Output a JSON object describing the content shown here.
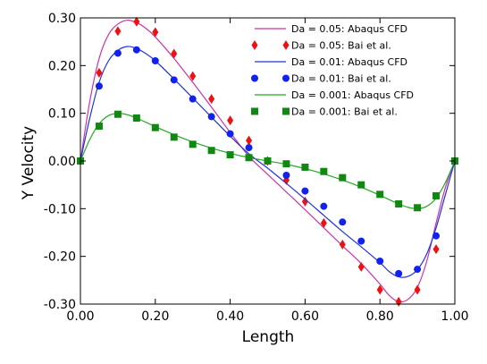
{
  "chart_data": {
    "type": "line",
    "xlabel": "Length",
    "ylabel": "Y Velocity",
    "xlim": [
      0.0,
      1.0
    ],
    "ylim": [
      -0.3,
      0.3
    ],
    "x_ticks": [
      {
        "value": 0.0,
        "label": "0.00"
      },
      {
        "value": 0.2,
        "label": "0.20"
      },
      {
        "value": 0.4,
        "label": "0.40"
      },
      {
        "value": 0.6,
        "label": "0.60"
      },
      {
        "value": 0.8,
        "label": "0.80"
      },
      {
        "value": 1.0,
        "label": "1.00"
      }
    ],
    "y_ticks": [
      {
        "value": 0.3,
        "label": "0.30"
      },
      {
        "value": 0.2,
        "label": "0.20"
      },
      {
        "value": 0.1,
        "label": "0.10"
      },
      {
        "value": 0.0,
        "label": "0.00"
      },
      {
        "value": -0.1,
        "label": "-0.10"
      },
      {
        "value": -0.2,
        "label": "-0.20"
      },
      {
        "value": -0.3,
        "label": "-0.30"
      }
    ],
    "legend_position": "top-right",
    "grid": false,
    "series": [
      {
        "name": "Da = 0.05: Abaqus CFD",
        "kind": "line",
        "color": "#cc33aa",
        "x": [
          0.0,
          0.025,
          0.05,
          0.075,
          0.1,
          0.125,
          0.15,
          0.175,
          0.2,
          0.25,
          0.3,
          0.35,
          0.4,
          0.45,
          0.5,
          0.55,
          0.6,
          0.65,
          0.7,
          0.75,
          0.8,
          0.825,
          0.85,
          0.875,
          0.9,
          0.925,
          0.95,
          0.975,
          1.0
        ],
        "y": [
          0.0,
          0.125,
          0.215,
          0.265,
          0.287,
          0.295,
          0.29,
          0.278,
          0.26,
          0.215,
          0.165,
          0.113,
          0.06,
          0.01,
          -0.028,
          -0.065,
          -0.102,
          -0.14,
          -0.178,
          -0.215,
          -0.258,
          -0.282,
          -0.295,
          -0.29,
          -0.265,
          -0.21,
          -0.13,
          -0.055,
          0.0
        ]
      },
      {
        "name": "Da = 0.05: Bai et al.",
        "kind": "marker",
        "marker": "diamond",
        "color": "#ee1111",
        "x": [
          0.05,
          0.1,
          0.15,
          0.2,
          0.25,
          0.3,
          0.35,
          0.4,
          0.45,
          0.5,
          0.55,
          0.6,
          0.65,
          0.7,
          0.75,
          0.8,
          0.85,
          0.9,
          0.95
        ],
        "y": [
          0.185,
          0.272,
          0.292,
          0.27,
          0.225,
          0.178,
          0.13,
          0.085,
          0.043,
          0.0,
          -0.04,
          -0.085,
          -0.13,
          -0.175,
          -0.222,
          -0.27,
          -0.295,
          -0.27,
          -0.185
        ]
      },
      {
        "name": "Da = 0.01: Abaqus CFD",
        "kind": "line",
        "color": "#2233dd",
        "x": [
          0.0,
          0.025,
          0.05,
          0.075,
          0.1,
          0.125,
          0.15,
          0.175,
          0.2,
          0.25,
          0.3,
          0.35,
          0.4,
          0.45,
          0.5,
          0.55,
          0.6,
          0.65,
          0.7,
          0.75,
          0.8,
          0.825,
          0.85,
          0.875,
          0.9,
          0.925,
          0.95,
          0.975,
          1.0
        ],
        "y": [
          0.0,
          0.09,
          0.165,
          0.21,
          0.232,
          0.24,
          0.236,
          0.225,
          0.21,
          0.172,
          0.132,
          0.092,
          0.052,
          0.015,
          -0.015,
          -0.047,
          -0.08,
          -0.114,
          -0.148,
          -0.18,
          -0.213,
          -0.232,
          -0.243,
          -0.242,
          -0.228,
          -0.195,
          -0.14,
          -0.07,
          0.0
        ]
      },
      {
        "name": "Da = 0.01: Bai et al.",
        "kind": "marker",
        "marker": "circle",
        "color": "#1122ee",
        "x": [
          0.0,
          0.05,
          0.1,
          0.15,
          0.2,
          0.25,
          0.3,
          0.35,
          0.4,
          0.45,
          0.5,
          0.55,
          0.6,
          0.65,
          0.7,
          0.75,
          0.8,
          0.85,
          0.9,
          0.95,
          1.0
        ],
        "y": [
          0.0,
          0.157,
          0.226,
          0.233,
          0.21,
          0.17,
          0.13,
          0.093,
          0.057,
          0.028,
          0.0,
          -0.03,
          -0.063,
          -0.095,
          -0.128,
          -0.168,
          -0.21,
          -0.236,
          -0.227,
          -0.157,
          0.0
        ]
      },
      {
        "name": "Da = 0.001: Abaqus CFD",
        "kind": "line",
        "color": "#22aa22",
        "x": [
          0.0,
          0.025,
          0.05,
          0.075,
          0.1,
          0.125,
          0.15,
          0.2,
          0.25,
          0.3,
          0.35,
          0.4,
          0.45,
          0.5,
          0.55,
          0.6,
          0.65,
          0.7,
          0.75,
          0.8,
          0.85,
          0.875,
          0.9,
          0.925,
          0.95,
          0.975,
          1.0
        ],
        "y": [
          0.0,
          0.045,
          0.078,
          0.095,
          0.1,
          0.097,
          0.09,
          0.072,
          0.055,
          0.04,
          0.027,
          0.016,
          0.007,
          0.0,
          -0.007,
          -0.016,
          -0.027,
          -0.04,
          -0.055,
          -0.072,
          -0.09,
          -0.097,
          -0.1,
          -0.095,
          -0.078,
          -0.045,
          0.0
        ]
      },
      {
        "name": "Da = 0.001: Bai et al.",
        "kind": "marker",
        "marker": "square",
        "color": "#118811",
        "x": [
          0.0,
          0.05,
          0.1,
          0.15,
          0.2,
          0.25,
          0.3,
          0.35,
          0.4,
          0.45,
          0.5,
          0.55,
          0.6,
          0.65,
          0.7,
          0.75,
          0.8,
          0.85,
          0.9,
          0.95,
          1.0
        ],
        "y": [
          0.0,
          0.073,
          0.098,
          0.09,
          0.07,
          0.05,
          0.035,
          0.022,
          0.013,
          0.007,
          0.0,
          -0.006,
          -0.013,
          -0.022,
          -0.035,
          -0.05,
          -0.07,
          -0.09,
          -0.098,
          -0.073,
          0.0
        ]
      }
    ]
  }
}
